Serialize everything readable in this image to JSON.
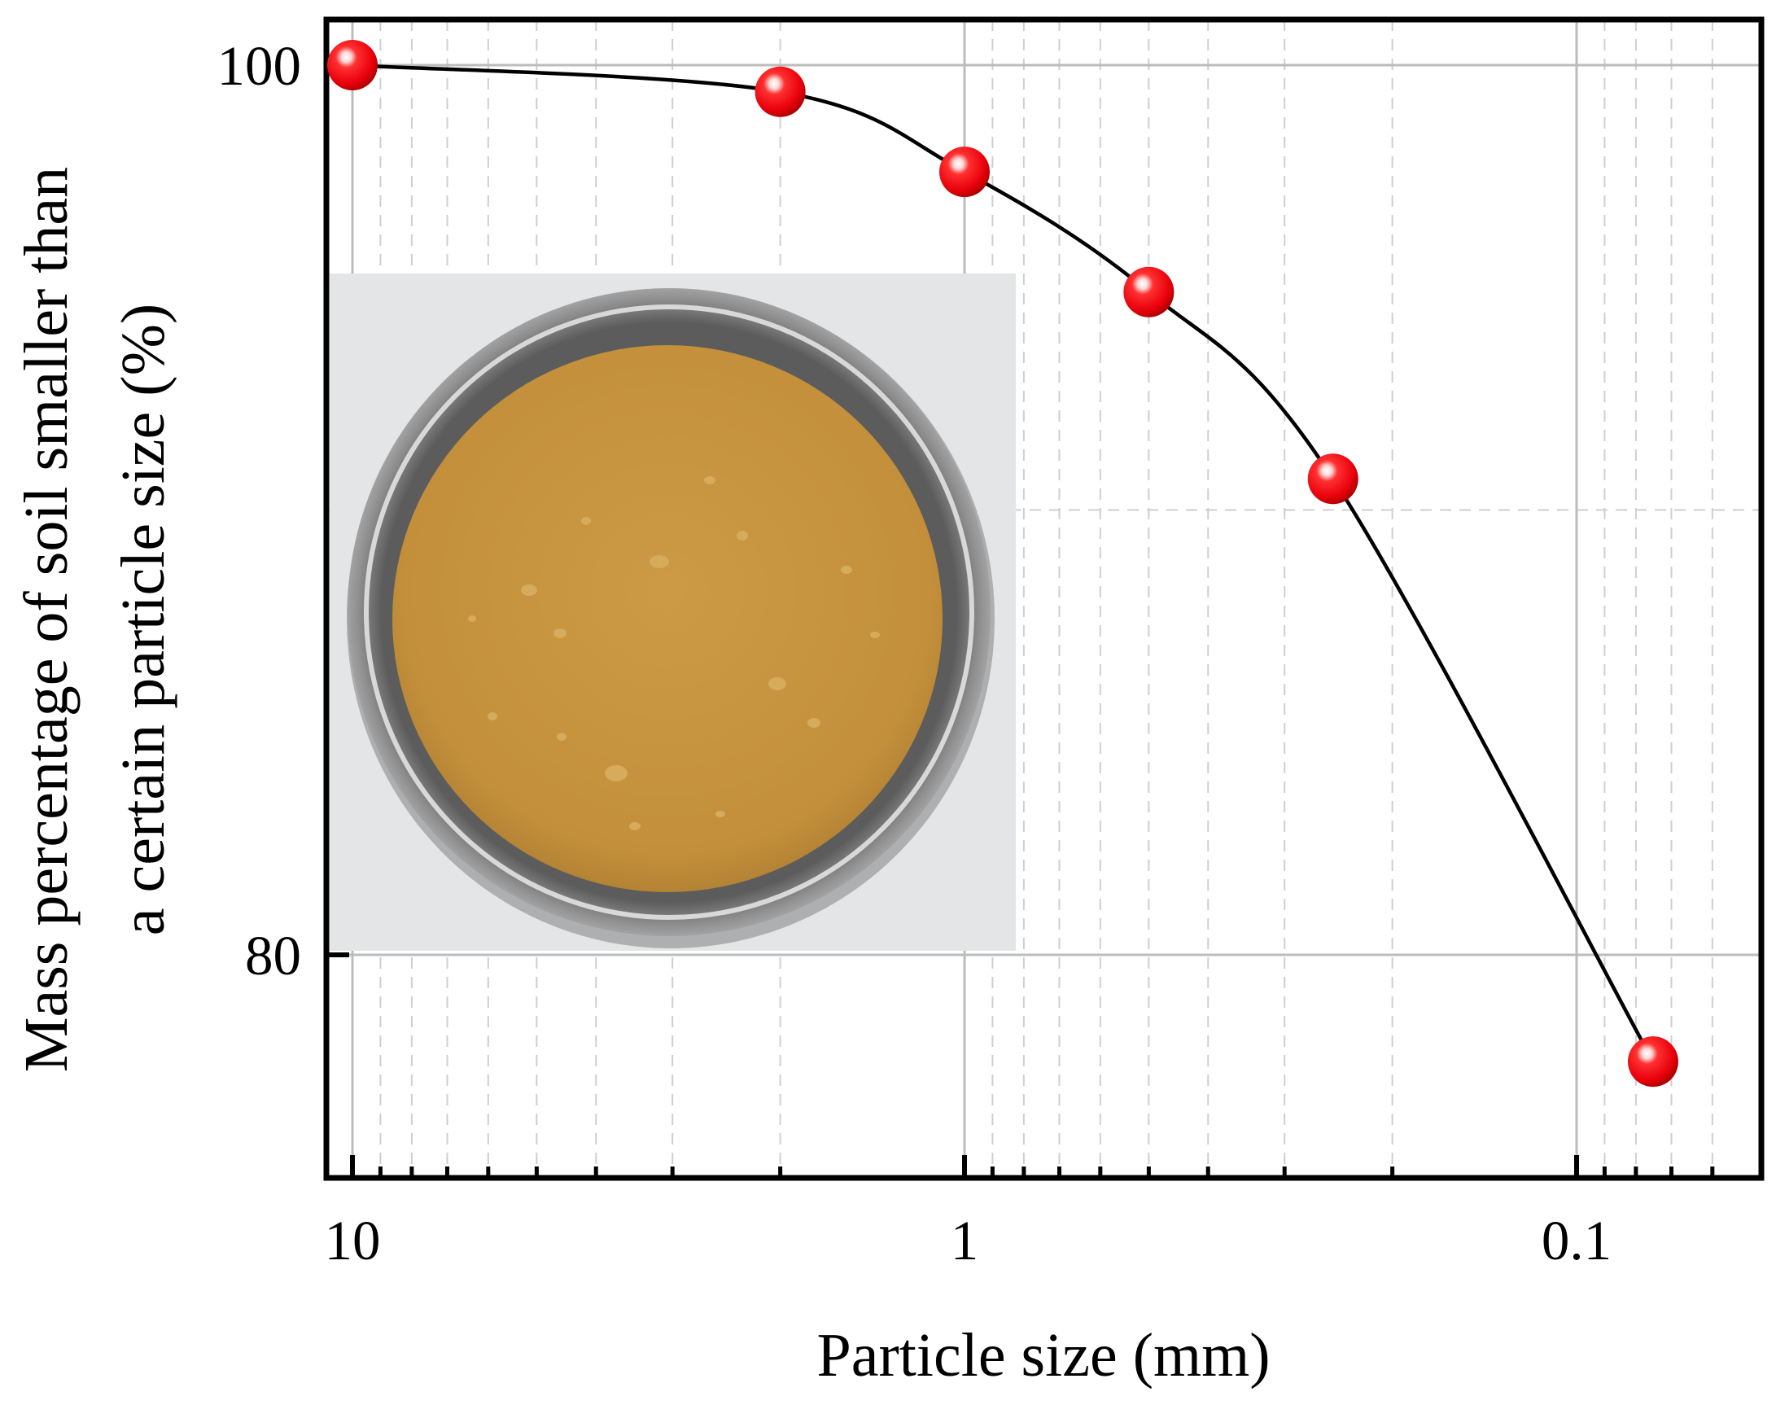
{
  "colors": {
    "marker": "#e8000b",
    "curve": "#000000",
    "grid_major": "#bcbcbc",
    "grid_minor": "#cfcfcf",
    "photo_background": "#e4e5e7",
    "soil": "#c8943e",
    "bowl_rim": "#8b8b8b"
  },
  "chart_data": {
    "type": "line",
    "markers": "red spheres",
    "x_scale": "log, reversed (decreasing particle size to the right)",
    "xlim": [
      10,
      0.055
    ],
    "ylim": [
      74.6,
      101.3
    ],
    "x_ticks": [
      {
        "value": 10,
        "label": "10"
      },
      {
        "value": 1,
        "label": "1"
      },
      {
        "value": 0.1,
        "label": "0.1"
      }
    ],
    "y_ticks": [
      {
        "value": 100,
        "label": "100"
      },
      {
        "value": 80,
        "label": "80"
      }
    ],
    "xlabel": "Particle size (mm)",
    "ylabel_lines": [
      "Mass percentage of soil smaller than",
      "a certain particle size (%)"
    ],
    "grid": "major solid, minor dashed",
    "series": [
      {
        "x": [
          10,
          2,
          1,
          0.5,
          0.25,
          0.075
        ],
        "y": [
          100,
          99.4,
          97.6,
          94.9,
          90.7,
          77.6
        ]
      }
    ],
    "inset_image": "photo of yellow-brown soil sample in a round steel dish"
  }
}
